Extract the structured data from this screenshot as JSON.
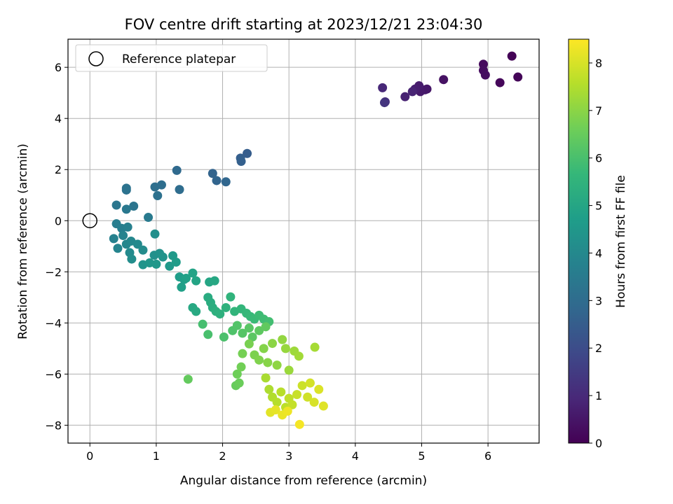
{
  "chart_data": {
    "type": "scatter",
    "title": "FOV centre drift starting at 2023/12/21 23:04:30",
    "xlabel": "Angular distance from reference (arcmin)",
    "ylabel": "Rotation from reference (arcmin)",
    "xlim": [
      -0.33,
      6.77
    ],
    "ylim": [
      -8.7,
      7.1
    ],
    "xticks": [
      0,
      1,
      2,
      3,
      4,
      5,
      6
    ],
    "xtick_labels": [
      "0",
      "1",
      "2",
      "3",
      "4",
      "5",
      "6"
    ],
    "yticks": [
      -8,
      -6,
      -4,
      -2,
      0,
      2,
      4,
      6
    ],
    "ytick_labels": [
      "−8",
      "−6",
      "−4",
      "−2",
      "0",
      "2",
      "4",
      "6"
    ],
    "grid": true,
    "legend": {
      "placement": "top-left",
      "entries": [
        {
          "label": "Reference platepar",
          "marker": "open-circle"
        }
      ]
    },
    "reference_point": {
      "x": 0,
      "y": 0
    },
    "colorbar": {
      "label": "Hours from first FF file",
      "colormap": "viridis",
      "range": [
        0,
        8.5
      ],
      "ticks": [
        0,
        1,
        2,
        3,
        4,
        5,
        6,
        7,
        8
      ],
      "tick_labels": [
        "0",
        "1",
        "2",
        "3",
        "4",
        "5",
        "6",
        "7",
        "8"
      ]
    },
    "colormap_stops": [
      "#440154",
      "#482878",
      "#3e4989",
      "#31688e",
      "#26828e",
      "#1f9e89",
      "#35b779",
      "#6ece58",
      "#b5de2b",
      "#fde725"
    ],
    "points": [
      {
        "x": 6.36,
        "y": 6.44,
        "t": 0.05
      },
      {
        "x": 6.45,
        "y": 5.62,
        "t": 0.1
      },
      {
        "x": 6.18,
        "y": 5.4,
        "t": 0.15
      },
      {
        "x": 5.93,
        "y": 6.12,
        "t": 0.2
      },
      {
        "x": 5.93,
        "y": 5.88,
        "t": 0.25
      },
      {
        "x": 5.96,
        "y": 5.7,
        "t": 0.3
      },
      {
        "x": 5.33,
        "y": 5.52,
        "t": 0.4
      },
      {
        "x": 5.08,
        "y": 5.15,
        "t": 0.5
      },
      {
        "x": 5.05,
        "y": 5.12,
        "t": 0.55
      },
      {
        "x": 4.98,
        "y": 5.05,
        "t": 0.6
      },
      {
        "x": 4.96,
        "y": 5.28,
        "t": 0.65
      },
      {
        "x": 4.9,
        "y": 5.15,
        "t": 0.7
      },
      {
        "x": 4.75,
        "y": 4.85,
        "t": 0.8
      },
      {
        "x": 4.86,
        "y": 5.05,
        "t": 0.85
      },
      {
        "x": 4.41,
        "y": 5.2,
        "t": 0.95
      },
      {
        "x": 4.45,
        "y": 4.65,
        "t": 1.1
      },
      {
        "x": 4.44,
        "y": 4.62,
        "t": 1.3
      },
      {
        "x": 2.37,
        "y": 2.63,
        "t": 2.5
      },
      {
        "x": 2.27,
        "y": 2.45,
        "t": 2.55
      },
      {
        "x": 2.28,
        "y": 2.32,
        "t": 2.6
      },
      {
        "x": 1.85,
        "y": 1.85,
        "t": 2.7
      },
      {
        "x": 1.91,
        "y": 1.57,
        "t": 2.75
      },
      {
        "x": 2.05,
        "y": 1.52,
        "t": 2.8
      },
      {
        "x": 1.31,
        "y": 1.97,
        "t": 2.9
      },
      {
        "x": 1.35,
        "y": 1.22,
        "t": 3.0
      },
      {
        "x": 1.08,
        "y": 1.4,
        "t": 3.05
      },
      {
        "x": 0.98,
        "y": 1.32,
        "t": 3.1
      },
      {
        "x": 1.02,
        "y": 0.98,
        "t": 3.15
      },
      {
        "x": 0.55,
        "y": 1.2,
        "t": 3.2
      },
      {
        "x": 0.55,
        "y": 1.27,
        "t": 3.25
      },
      {
        "x": 0.66,
        "y": 0.57,
        "t": 3.3
      },
      {
        "x": 0.4,
        "y": 0.61,
        "t": 3.35
      },
      {
        "x": 0.55,
        "y": 0.45,
        "t": 3.4
      },
      {
        "x": 0.88,
        "y": 0.13,
        "t": 3.5
      },
      {
        "x": 0.4,
        "y": -0.12,
        "t": 3.6
      },
      {
        "x": 0.48,
        "y": -0.3,
        "t": 3.65
      },
      {
        "x": 0.57,
        "y": -0.25,
        "t": 3.7
      },
      {
        "x": 0.36,
        "y": -0.7,
        "t": 3.75
      },
      {
        "x": 0.5,
        "y": -0.58,
        "t": 3.8
      },
      {
        "x": 0.42,
        "y": -1.08,
        "t": 3.85
      },
      {
        "x": 0.55,
        "y": -0.92,
        "t": 3.9
      },
      {
        "x": 0.62,
        "y": -0.8,
        "t": 3.95
      },
      {
        "x": 0.72,
        "y": -0.92,
        "t": 4.0
      },
      {
        "x": 0.6,
        "y": -1.25,
        "t": 4.05
      },
      {
        "x": 0.8,
        "y": -1.15,
        "t": 4.1
      },
      {
        "x": 0.63,
        "y": -1.5,
        "t": 4.15
      },
      {
        "x": 0.98,
        "y": -0.52,
        "t": 4.2
      },
      {
        "x": 0.97,
        "y": -1.35,
        "t": 4.25
      },
      {
        "x": 1.05,
        "y": -1.28,
        "t": 4.3
      },
      {
        "x": 1.1,
        "y": -1.42,
        "t": 4.35
      },
      {
        "x": 0.8,
        "y": -1.72,
        "t": 4.4
      },
      {
        "x": 0.9,
        "y": -1.65,
        "t": 4.45
      },
      {
        "x": 1.0,
        "y": -1.7,
        "t": 4.5
      },
      {
        "x": 1.2,
        "y": -1.78,
        "t": 4.55
      },
      {
        "x": 1.25,
        "y": -1.37,
        "t": 4.6
      },
      {
        "x": 1.3,
        "y": -1.62,
        "t": 4.65
      },
      {
        "x": 1.35,
        "y": -2.2,
        "t": 4.7
      },
      {
        "x": 1.42,
        "y": -2.3,
        "t": 4.75
      },
      {
        "x": 1.38,
        "y": -2.6,
        "t": 4.8
      },
      {
        "x": 1.45,
        "y": -2.25,
        "t": 4.85
      },
      {
        "x": 1.55,
        "y": -2.05,
        "t": 4.9
      },
      {
        "x": 1.6,
        "y": -2.35,
        "t": 4.95
      },
      {
        "x": 1.8,
        "y": -2.4,
        "t": 5.0
      },
      {
        "x": 1.88,
        "y": -2.35,
        "t": 5.05
      },
      {
        "x": 1.55,
        "y": -3.4,
        "t": 5.1
      },
      {
        "x": 1.6,
        "y": -3.55,
        "t": 5.15
      },
      {
        "x": 1.78,
        "y": -3.0,
        "t": 5.2
      },
      {
        "x": 1.82,
        "y": -3.2,
        "t": 5.25
      },
      {
        "x": 1.85,
        "y": -3.4,
        "t": 5.3
      },
      {
        "x": 1.9,
        "y": -3.55,
        "t": 5.35
      },
      {
        "x": 1.96,
        "y": -3.65,
        "t": 5.4
      },
      {
        "x": 2.05,
        "y": -3.4,
        "t": 5.45
      },
      {
        "x": 2.12,
        "y": -2.98,
        "t": 5.5
      },
      {
        "x": 2.18,
        "y": -3.55,
        "t": 5.55
      },
      {
        "x": 2.28,
        "y": -3.45,
        "t": 5.6
      },
      {
        "x": 2.36,
        "y": -3.62,
        "t": 5.65
      },
      {
        "x": 2.42,
        "y": -3.75,
        "t": 5.7
      },
      {
        "x": 2.48,
        "y": -3.85,
        "t": 5.75
      },
      {
        "x": 2.55,
        "y": -3.7,
        "t": 5.8
      },
      {
        "x": 2.62,
        "y": -3.85,
        "t": 5.85
      },
      {
        "x": 2.7,
        "y": -3.95,
        "t": 5.9
      },
      {
        "x": 1.7,
        "y": -4.05,
        "t": 5.95
      },
      {
        "x": 1.78,
        "y": -4.45,
        "t": 6.0
      },
      {
        "x": 2.02,
        "y": -4.55,
        "t": 6.05
      },
      {
        "x": 2.15,
        "y": -4.3,
        "t": 6.1
      },
      {
        "x": 2.22,
        "y": -4.1,
        "t": 6.15
      },
      {
        "x": 2.3,
        "y": -4.4,
        "t": 6.2
      },
      {
        "x": 2.4,
        "y": -4.2,
        "t": 6.25
      },
      {
        "x": 2.45,
        "y": -4.55,
        "t": 6.3
      },
      {
        "x": 2.55,
        "y": -4.3,
        "t": 6.35
      },
      {
        "x": 2.65,
        "y": -4.15,
        "t": 6.4
      },
      {
        "x": 1.48,
        "y": -6.2,
        "t": 6.45
      },
      {
        "x": 2.2,
        "y": -6.45,
        "t": 6.5
      },
      {
        "x": 2.25,
        "y": -6.35,
        "t": 6.55
      },
      {
        "x": 2.22,
        "y": -6.0,
        "t": 6.6
      },
      {
        "x": 2.28,
        "y": -5.72,
        "t": 6.65
      },
      {
        "x": 2.3,
        "y": -5.2,
        "t": 6.7
      },
      {
        "x": 2.4,
        "y": -4.82,
        "t": 6.75
      },
      {
        "x": 2.48,
        "y": -5.25,
        "t": 6.8
      },
      {
        "x": 2.55,
        "y": -5.45,
        "t": 6.85
      },
      {
        "x": 2.62,
        "y": -5.0,
        "t": 6.9
      },
      {
        "x": 2.68,
        "y": -5.55,
        "t": 6.95
      },
      {
        "x": 2.75,
        "y": -4.8,
        "t": 7.0
      },
      {
        "x": 2.82,
        "y": -5.65,
        "t": 7.05
      },
      {
        "x": 2.9,
        "y": -4.65,
        "t": 7.1
      },
      {
        "x": 2.95,
        "y": -5.0,
        "t": 7.15
      },
      {
        "x": 3.0,
        "y": -5.85,
        "t": 7.2
      },
      {
        "x": 3.08,
        "y": -5.1,
        "t": 7.25
      },
      {
        "x": 3.15,
        "y": -5.3,
        "t": 7.3
      },
      {
        "x": 3.39,
        "y": -4.95,
        "t": 7.35
      },
      {
        "x": 2.65,
        "y": -6.15,
        "t": 7.4
      },
      {
        "x": 2.7,
        "y": -6.6,
        "t": 7.45
      },
      {
        "x": 2.75,
        "y": -6.9,
        "t": 7.5
      },
      {
        "x": 2.82,
        "y": -7.1,
        "t": 7.55
      },
      {
        "x": 2.88,
        "y": -6.7,
        "t": 7.6
      },
      {
        "x": 2.95,
        "y": -7.3,
        "t": 7.65
      },
      {
        "x": 3.0,
        "y": -6.95,
        "t": 7.7
      },
      {
        "x": 3.05,
        "y": -7.2,
        "t": 7.75
      },
      {
        "x": 3.12,
        "y": -6.8,
        "t": 7.8
      },
      {
        "x": 3.2,
        "y": -6.45,
        "t": 7.85
      },
      {
        "x": 3.28,
        "y": -6.9,
        "t": 7.9
      },
      {
        "x": 3.32,
        "y": -6.35,
        "t": 7.95
      },
      {
        "x": 3.38,
        "y": -7.1,
        "t": 8.0
      },
      {
        "x": 3.45,
        "y": -6.6,
        "t": 8.05
      },
      {
        "x": 3.52,
        "y": -7.25,
        "t": 8.1
      },
      {
        "x": 2.72,
        "y": -7.5,
        "t": 8.15
      },
      {
        "x": 2.8,
        "y": -7.4,
        "t": 8.2
      },
      {
        "x": 2.9,
        "y": -7.6,
        "t": 8.25
      },
      {
        "x": 2.98,
        "y": -7.45,
        "t": 8.3
      },
      {
        "x": 3.16,
        "y": -7.97,
        "t": 8.4
      }
    ]
  }
}
